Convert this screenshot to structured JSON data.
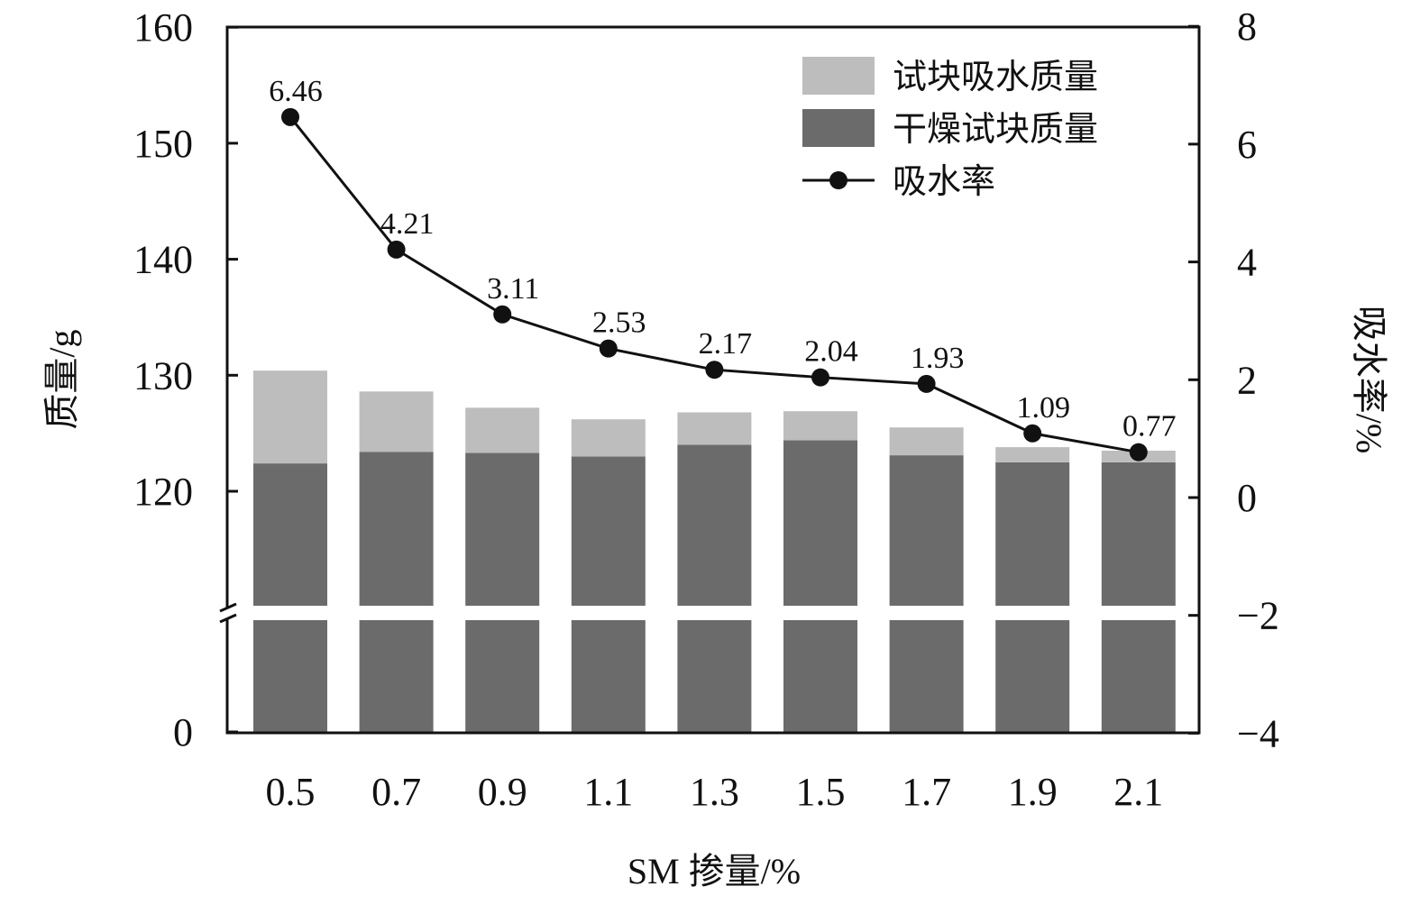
{
  "chart_data": {
    "type": "bar",
    "stacked": true,
    "categories": [
      "0.5",
      "0.7",
      "0.9",
      "1.1",
      "1.3",
      "1.5",
      "1.7",
      "1.9",
      "2.1"
    ],
    "series": [
      {
        "name": "干燥试块质量",
        "axis": "left",
        "type": "bar",
        "color": "#6b6b6b",
        "values": [
          122.4,
          123.4,
          123.3,
          123.0,
          124.0,
          124.4,
          123.1,
          122.5,
          122.5
        ]
      },
      {
        "name": "试块吸水质量",
        "axis": "left",
        "type": "bar",
        "color": "#bdbdbd",
        "values": [
          8.0,
          5.2,
          3.9,
          3.2,
          2.8,
          2.5,
          2.4,
          1.3,
          1.0
        ]
      },
      {
        "name": "吸水率",
        "axis": "right",
        "type": "line",
        "color": "#111111",
        "values": [
          6.46,
          4.21,
          3.11,
          2.53,
          2.17,
          2.04,
          1.93,
          1.09,
          0.77
        ],
        "labels": [
          "6.46",
          "4.21",
          "3.11",
          "2.53",
          "2.17",
          "2.04",
          "1.93",
          "1.09",
          "0.77"
        ]
      }
    ],
    "xlabel": "SM 掺量/%",
    "ylabel": "质量/g",
    "y2label": "吸水率/%",
    "ylim": [
      0,
      160
    ],
    "y_axis_break": [
      0,
      120
    ],
    "yticks": [
      "0",
      "120",
      "130",
      "140",
      "150",
      "160"
    ],
    "y2lim": [
      -4,
      8
    ],
    "y2ticks": [
      "−4",
      "−2",
      "0",
      "2",
      "4",
      "6",
      "8"
    ],
    "legend": [
      "试块吸水质量",
      "干燥试块质量",
      "吸水率"
    ],
    "legend_position": "top-right",
    "grid": false
  }
}
